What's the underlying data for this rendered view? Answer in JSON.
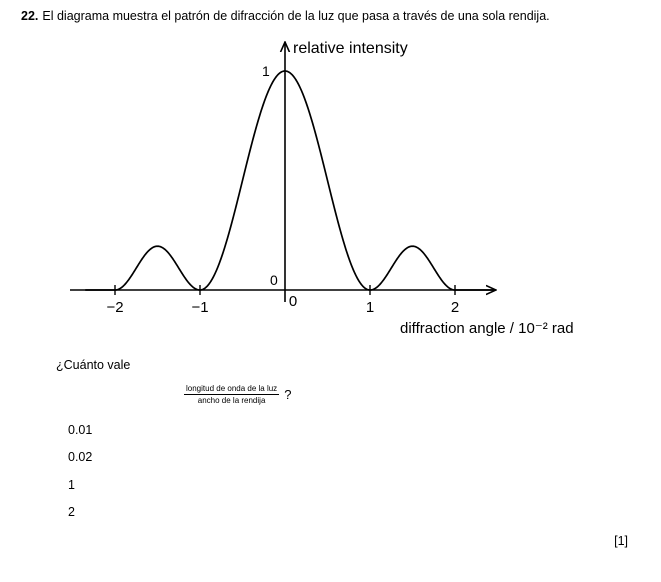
{
  "question": {
    "number": "22.",
    "text": "El diagrama muestra el patrón de difracción de la luz que pasa a través de una sola rendija."
  },
  "chart_data": {
    "type": "line",
    "ylabel": "relative intensity",
    "xlabel": "diffraction angle / 10⁻² rad",
    "xlim": [
      -2.35,
      2.45
    ],
    "ylim": [
      0,
      1
    ],
    "x_ticks": [
      "−2",
      "−1",
      "0",
      "1",
      "2"
    ],
    "x_tick_values": [
      -2,
      -1,
      0,
      1,
      2
    ],
    "y_ticks": [
      "0",
      "1"
    ],
    "series": [
      {
        "x": [
          -2.35,
          -2.0,
          -1.5,
          -1.0,
          -0.5,
          0,
          0.5,
          1.0,
          1.5,
          2.0,
          2.45
        ],
        "y": [
          0,
          0,
          0.2,
          0,
          0.55,
          1,
          0.55,
          0,
          0.2,
          0,
          0
        ]
      }
    ],
    "grid": false
  },
  "prompt": "¿Cuánto vale",
  "fraction": {
    "numerator": "longitud de onda de la luz",
    "denominator": "ancho de la rendija",
    "suffix": "?"
  },
  "options": [
    "0.01",
    "0.02",
    "1",
    "2"
  ],
  "marks": "[1]"
}
